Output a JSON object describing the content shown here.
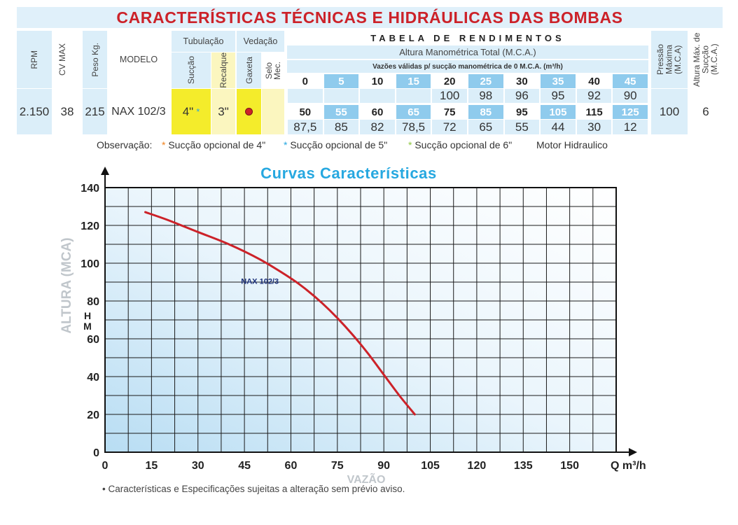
{
  "table": {
    "title": "CARACTERÍSTICAS TÉCNICAS E HIDRÁULICAS DAS BOMBAS",
    "headers": {
      "rpm": "RPM",
      "cv_max": "CV MAX",
      "peso": "Peso Kg.",
      "modelo": "MODELO",
      "tubulacao": "Tubulação",
      "succao": "Sucção",
      "recalque": "Recalque",
      "vedacao": "Vedação",
      "gaxeta": "Gaxeta",
      "selo": "Selo Mec.",
      "rendimentos": "TABELA DE RENDIMENTOS",
      "altura_total": "Altura Manométrica Total (M.C.A.)",
      "vazoes": "Vazões válidas p/ sucção manométrica de 0 M.C.A. (m³/h)",
      "pressao": "Pressão Máxima (M.C.A)",
      "altura_succao": "Altura Máx. de Sucção (M.C.A.)"
    },
    "row": {
      "rpm": "2.150",
      "cv": "38",
      "peso": "215",
      "modelo": "NAX 102/3",
      "succao": "4\"",
      "succao_mark": "*",
      "recalque": "3\"",
      "pressao": "100",
      "altura_succao": "6"
    },
    "flows_row1": [
      "0",
      "5",
      "10",
      "15",
      "20",
      "25",
      "30",
      "35",
      "40",
      "45"
    ],
    "heights_row1": [
      "",
      "",
      "",
      "",
      "100",
      "98",
      "96",
      "95",
      "92",
      "90"
    ],
    "flows_row2": [
      "50",
      "55",
      "60",
      "65",
      "75",
      "85",
      "95",
      "105",
      "115",
      "125"
    ],
    "heights_row2": [
      "87,5",
      "85",
      "82",
      "78,5",
      "72",
      "65",
      "55",
      "44",
      "30",
      "12"
    ]
  },
  "observations": {
    "label": "Observação:",
    "items": [
      {
        "mark": "*",
        "text": "Sucção opcional de 4\"",
        "color": "#f0821e"
      },
      {
        "mark": "*",
        "text": "Sucção opcional de 5\"",
        "color": "#27a8e0"
      },
      {
        "mark": "*",
        "text": "Sucção opcional de 6\"",
        "color": "#8dc63f"
      }
    ],
    "motor": "Motor Hidraulico"
  },
  "chart_data": {
    "type": "line",
    "title": "Curvas Características",
    "xlabel": "VAZÃO",
    "x_unit": "Q m³/h",
    "ylabel": "ALTURA (MCA)",
    "y_unit": "H M",
    "xlim": [
      0,
      165
    ],
    "ylim": [
      0,
      140
    ],
    "x_ticks": [
      0,
      15,
      30,
      45,
      60,
      75,
      90,
      105,
      120,
      135,
      150
    ],
    "y_ticks": [
      0,
      20,
      40,
      60,
      80,
      100,
      120,
      140
    ],
    "grid": true,
    "series": [
      {
        "name": "NAX 102/3",
        "color": "#cc2229",
        "x": [
          13,
          20,
          30,
          40,
          50,
          60,
          65,
          70,
          75,
          80,
          85,
          90,
          95,
          100
        ],
        "y": [
          127,
          123,
          116.5,
          110,
          102,
          92,
          86,
          79,
          71,
          62,
          52,
          41,
          30,
          20
        ]
      }
    ]
  },
  "footnote": "• Características e Especificações sujeitas a alteração sem prévio aviso."
}
